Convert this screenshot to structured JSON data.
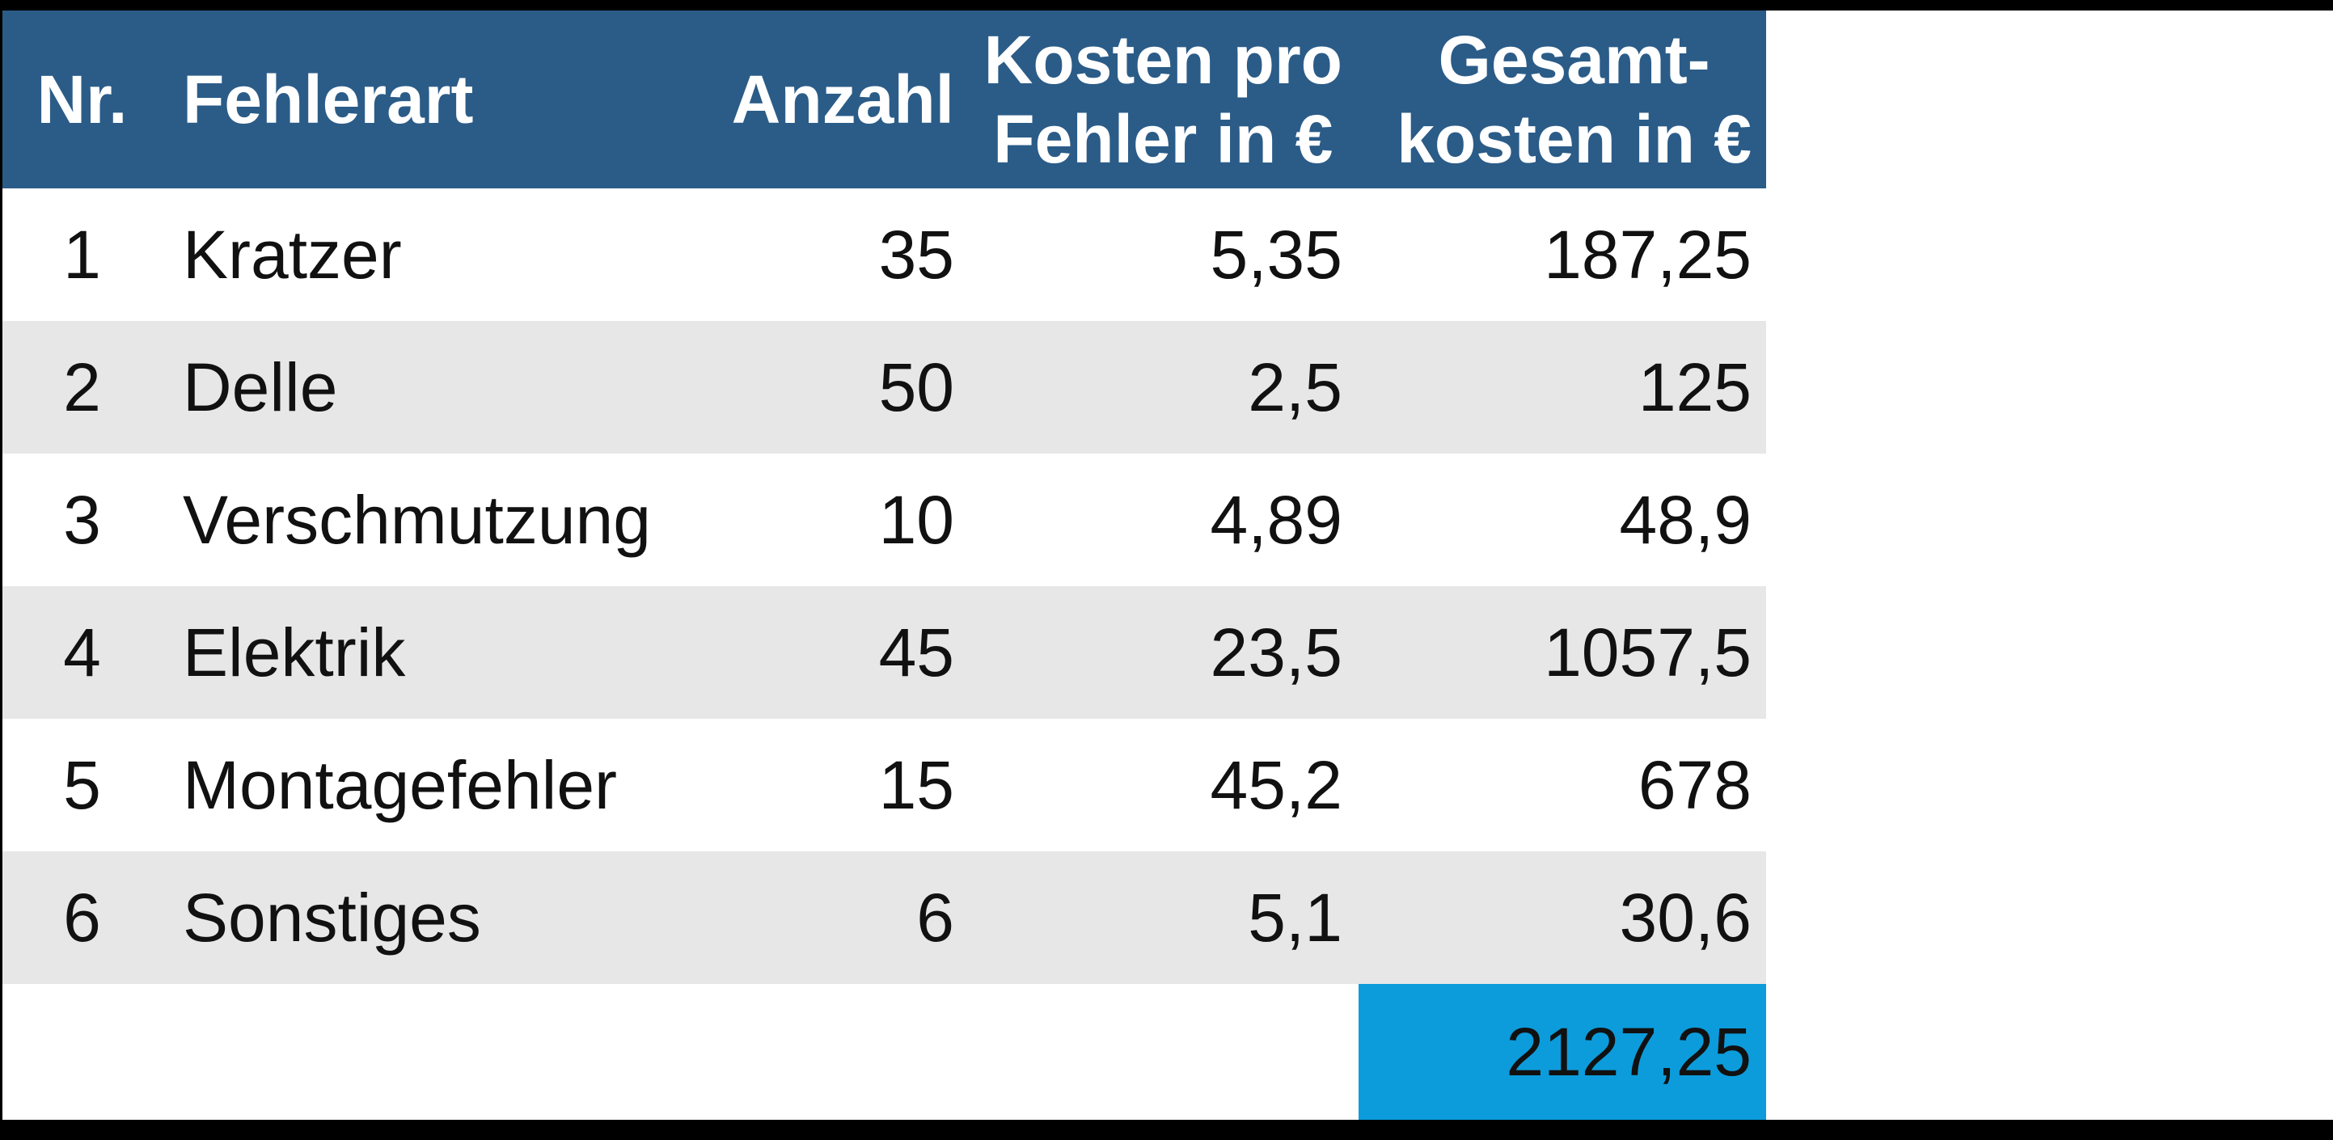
{
  "table": {
    "columns": [
      {
        "label": "Nr."
      },
      {
        "label": "Fehlerart"
      },
      {
        "label": "Anzahl"
      },
      {
        "label": "Kosten pro\nFehler in €"
      },
      {
        "label": "Gesamt-\nkosten in €"
      }
    ],
    "rows": [
      {
        "nr": "1",
        "fehlerart": "Kratzer",
        "anzahl": "35",
        "kosten": "5,35",
        "gesamt": "187,25"
      },
      {
        "nr": "2",
        "fehlerart": "Delle",
        "anzahl": "50",
        "kosten": "2,5",
        "gesamt": "125"
      },
      {
        "nr": "3",
        "fehlerart": "Verschmutzung",
        "anzahl": "10",
        "kosten": "4,89",
        "gesamt": "48,9"
      },
      {
        "nr": "4",
        "fehlerart": "Elektrik",
        "anzahl": "45",
        "kosten": "23,5",
        "gesamt": "1057,5"
      },
      {
        "nr": "5",
        "fehlerart": "Montagefehler",
        "anzahl": "15",
        "kosten": "45,2",
        "gesamt": "678"
      },
      {
        "nr": "6",
        "fehlerart": "Sonstiges",
        "anzahl": "6",
        "kosten": "5,1",
        "gesamt": "30,6"
      }
    ],
    "total": "2127,25"
  },
  "colors": {
    "header_bg": "#2B5C88",
    "header_text": "#FFFFFF",
    "row_bg": "#FFFFFF",
    "row_alt_bg": "#E7E7E7",
    "total_bg": "#0C9CDB",
    "body_text": "#111111",
    "frame": "#000000"
  },
  "chart_data": {
    "type": "table",
    "columns": [
      "Nr.",
      "Fehlerart",
      "Anzahl",
      "Kosten pro Fehler in €",
      "Gesamt-kosten in €"
    ],
    "rows": [
      [
        1,
        "Kratzer",
        35,
        5.35,
        187.25
      ],
      [
        2,
        "Delle",
        50,
        2.5,
        125
      ],
      [
        3,
        "Verschmutzung",
        10,
        4.89,
        48.9
      ],
      [
        4,
        "Elektrik",
        45,
        23.5,
        1057.5
      ],
      [
        5,
        "Montagefehler",
        15,
        45.2,
        678
      ],
      [
        6,
        "Sonstiges",
        6,
        5.1,
        30.6
      ]
    ],
    "total_gesamtkosten": 2127.25,
    "number_format": "de-DE decimal comma",
    "layout_hints": {
      "zebra_striping": true,
      "total_highlight_column": "Gesamt-kosten in €",
      "grid": false
    }
  }
}
